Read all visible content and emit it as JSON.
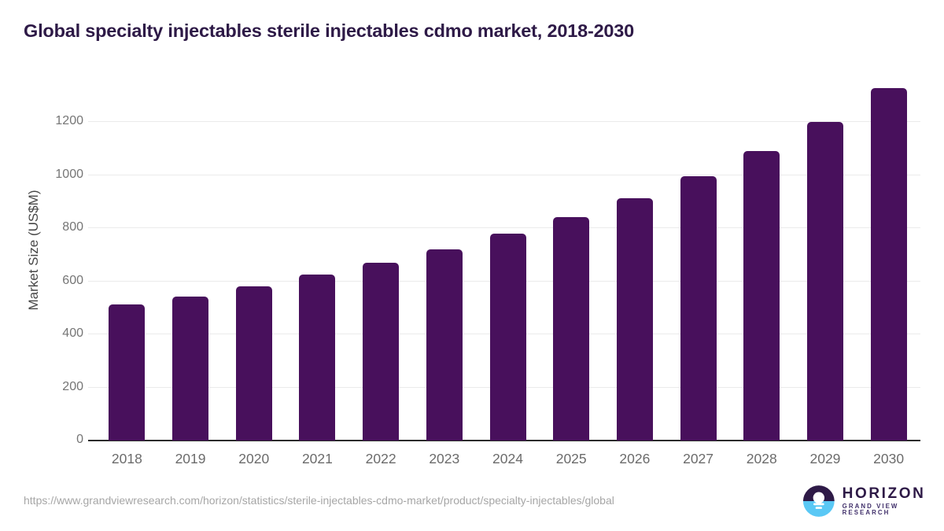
{
  "header": {
    "title": "Global specialty injectables sterile injectables cdmo market, 2018-2030"
  },
  "chart_data": {
    "type": "bar",
    "title": "Global specialty injectables sterile injectables cdmo market, 2018-2030",
    "categories": [
      "2018",
      "2019",
      "2020",
      "2021",
      "2022",
      "2023",
      "2024",
      "2025",
      "2026",
      "2027",
      "2028",
      "2029",
      "2030"
    ],
    "values": [
      513,
      543,
      582,
      626,
      671,
      721,
      778,
      841,
      914,
      997,
      1090,
      1200,
      1327
    ],
    "xlabel": "",
    "ylabel": "Market Size (US$M)",
    "yticks": [
      0,
      200,
      400,
      600,
      800,
      1000,
      1200
    ],
    "ylim": [
      0,
      1360
    ],
    "grid": true,
    "legend": false,
    "bar_color": "#48105c"
  },
  "footer": {
    "source_url": "https://www.grandviewresearch.com/horizon/statistics/sterile-injectables-cdmo-market/product/specialty-injectables/global",
    "brand": {
      "name": "HORIZON",
      "subtitle": "GRAND VIEW RESEARCH"
    }
  },
  "colors": {
    "bar": "#48105c",
    "title": "#2e1a47",
    "brand_subtitle": "#41306b",
    "logo_blue": "#5ac8f5",
    "gridline": "#ebebeb",
    "axis": "#2c2c2c",
    "tick_label": "#757575",
    "x_tick_label": "#6b6b6b",
    "y_axis_label": "#474747",
    "url_text": "#a6a6a6",
    "background": "#ffffff"
  }
}
